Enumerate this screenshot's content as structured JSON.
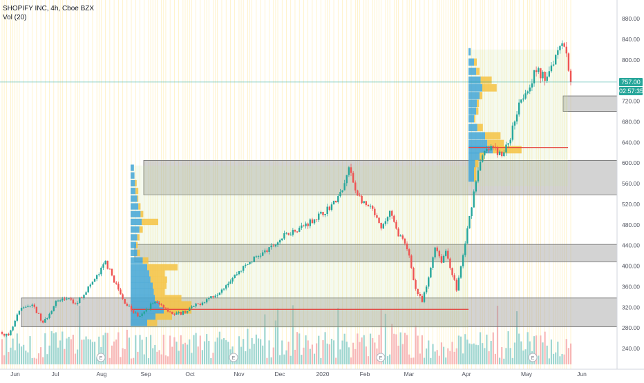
{
  "header": {
    "title": "SHOPIFY INC, 4h, Cboe BZX",
    "volume_label": "Vol (20)"
  },
  "price_badge": {
    "label": "757.00",
    "color": "#26a69a"
  },
  "countdown_badge": {
    "label": "02:57:35",
    "color": "#26a69a"
  },
  "colors": {
    "up": "#26a69a",
    "down": "#ef5350",
    "vol_up": "#9fd6cf",
    "vol_down": "#f7b7b5",
    "zone": "#9e9e9e",
    "vp_blue": "#42a5d6",
    "vp_yellow": "#f5c242",
    "poc": "#e53935",
    "vline": "#ffe082"
  },
  "earnings_marker": "E",
  "chart_data": {
    "type": "candlestick",
    "symbol": "SHOPIFY INC",
    "interval": "4h",
    "exchange": "Cboe BZX",
    "y_ticks": [
      240,
      280,
      320,
      360,
      400,
      440,
      480,
      520,
      560,
      600,
      640,
      680,
      720,
      760,
      800,
      840,
      880
    ],
    "y_tick_labels": [
      "240.00",
      "280.00",
      "320.00",
      "360.00",
      "400.00",
      "440.00",
      "480.00",
      "520.00",
      "560.00",
      "600.00",
      "640.00",
      "680.00",
      "720.00",
      "760.00",
      "800.00",
      "840.00",
      "880.00"
    ],
    "ylim": [
      215,
      895
    ],
    "x_labels": [
      "Jun",
      "Jul",
      "Aug",
      "Sep",
      "Oct",
      "Nov",
      "Dec",
      "2020",
      "Feb",
      "Mar",
      "Apr",
      "May",
      "Jun"
    ],
    "last_price": 757.0,
    "price_path": [
      [
        0,
        272
      ],
      [
        3,
        262
      ],
      [
        8,
        312
      ],
      [
        12,
        325
      ],
      [
        15,
        320
      ],
      [
        19,
        288
      ],
      [
        25,
        330
      ],
      [
        30,
        338
      ],
      [
        34,
        325
      ],
      [
        40,
        358
      ],
      [
        45,
        385
      ],
      [
        48,
        408
      ],
      [
        52,
        372
      ],
      [
        56,
        335
      ],
      [
        60,
        315
      ],
      [
        64,
        300
      ],
      [
        70,
        330
      ],
      [
        75,
        322
      ],
      [
        80,
        305
      ],
      [
        85,
        312
      ],
      [
        92,
        328
      ],
      [
        100,
        348
      ],
      [
        110,
        390
      ],
      [
        118,
        418
      ],
      [
        124,
        432
      ],
      [
        132,
        462
      ],
      [
        140,
        478
      ],
      [
        148,
        500
      ],
      [
        154,
        522
      ],
      [
        158,
        545
      ],
      [
        161,
        590
      ],
      [
        164,
        548
      ],
      [
        168,
        520
      ],
      [
        172,
        508
      ],
      [
        176,
        470
      ],
      [
        180,
        505
      ],
      [
        183,
        470
      ],
      [
        186,
        450
      ],
      [
        189,
        420
      ],
      [
        192,
        355
      ],
      [
        195,
        330
      ],
      [
        198,
        375
      ],
      [
        201,
        440
      ],
      [
        204,
        410
      ],
      [
        206,
        430
      ],
      [
        209,
        385
      ],
      [
        211,
        355
      ],
      [
        214,
        420
      ],
      [
        218,
        520
      ],
      [
        221,
        590
      ],
      [
        224,
        620
      ],
      [
        228,
        630
      ],
      [
        232,
        612
      ],
      [
        236,
        650
      ],
      [
        240,
        720
      ],
      [
        244,
        745
      ],
      [
        248,
        780
      ],
      [
        252,
        765
      ],
      [
        256,
        800
      ],
      [
        260,
        842
      ],
      [
        262,
        812
      ],
      [
        264,
        757
      ]
    ],
    "earnings_dates": [
      "Aug",
      "Oct",
      "Feb",
      "May"
    ],
    "support_resistance_zones": [
      {
        "low": 282,
        "high": 338
      },
      {
        "low": 408,
        "high": 442
      },
      {
        "low": 538,
        "high": 605
      },
      {
        "low": 700,
        "high": 730
      }
    ],
    "volume_profiles": [
      {
        "range": [
          280,
          595
        ],
        "poc_price": 316,
        "rows": [
          {
            "price": 590,
            "blue": 0.06,
            "yellow": 0.0
          },
          {
            "price": 575,
            "blue": 0.07,
            "yellow": 0.0
          },
          {
            "price": 560,
            "blue": 0.08,
            "yellow": 0.03
          },
          {
            "price": 545,
            "blue": 0.09,
            "yellow": 0.05
          },
          {
            "price": 530,
            "blue": 0.12,
            "yellow": 0.02
          },
          {
            "price": 515,
            "blue": 0.14,
            "yellow": 0.04
          },
          {
            "price": 500,
            "blue": 0.18,
            "yellow": 0.05
          },
          {
            "price": 485,
            "blue": 0.2,
            "yellow": 0.3
          },
          {
            "price": 470,
            "blue": 0.16,
            "yellow": 0.06
          },
          {
            "price": 455,
            "blue": 0.12,
            "yellow": 0.04
          },
          {
            "price": 440,
            "blue": 0.1,
            "yellow": 0.03
          },
          {
            "price": 425,
            "blue": 0.12,
            "yellow": 0.05
          },
          {
            "price": 410,
            "blue": 0.22,
            "yellow": 0.1
          },
          {
            "price": 397,
            "blue": 0.3,
            "yellow": 0.55
          },
          {
            "price": 385,
            "blue": 0.34,
            "yellow": 0.28
          },
          {
            "price": 373,
            "blue": 0.36,
            "yellow": 0.3
          },
          {
            "price": 361,
            "blue": 0.4,
            "yellow": 0.25
          },
          {
            "price": 349,
            "blue": 0.42,
            "yellow": 0.2
          },
          {
            "price": 337,
            "blue": 0.44,
            "yellow": 0.48
          },
          {
            "price": 325,
            "blue": 0.52,
            "yellow": 0.58
          },
          {
            "price": 313,
            "blue": 0.6,
            "yellow": 0.5
          },
          {
            "price": 301,
            "blue": 0.45,
            "yellow": 0.3
          },
          {
            "price": 289,
            "blue": 0.3,
            "yellow": 0.18
          }
        ]
      },
      {
        "range": [
          555,
          820
        ],
        "poc_price": 630,
        "rows": [
          {
            "price": 815,
            "blue": 0.04,
            "yellow": 0.0
          },
          {
            "price": 795,
            "blue": 0.1,
            "yellow": 0.05
          },
          {
            "price": 777,
            "blue": 0.14,
            "yellow": 0.06
          },
          {
            "price": 760,
            "blue": 0.22,
            "yellow": 0.2
          },
          {
            "price": 745,
            "blue": 0.25,
            "yellow": 0.26
          },
          {
            "price": 730,
            "blue": 0.2,
            "yellow": 0.05
          },
          {
            "price": 715,
            "blue": 0.15,
            "yellow": 0.04
          },
          {
            "price": 700,
            "blue": 0.14,
            "yellow": 0.04
          },
          {
            "price": 685,
            "blue": 0.1,
            "yellow": 0.02
          },
          {
            "price": 668,
            "blue": 0.16,
            "yellow": 0.1
          },
          {
            "price": 652,
            "blue": 0.3,
            "yellow": 0.28
          },
          {
            "price": 637,
            "blue": 0.34,
            "yellow": 0.3
          },
          {
            "price": 625,
            "blue": 0.44,
            "yellow": 0.52
          },
          {
            "price": 612,
            "blue": 0.2,
            "yellow": 0.08
          },
          {
            "price": 598,
            "blue": 0.12,
            "yellow": 0.06
          },
          {
            "price": 584,
            "blue": 0.1,
            "yellow": 0.04
          },
          {
            "price": 570,
            "blue": 0.1,
            "yellow": 0.04
          }
        ]
      }
    ]
  }
}
